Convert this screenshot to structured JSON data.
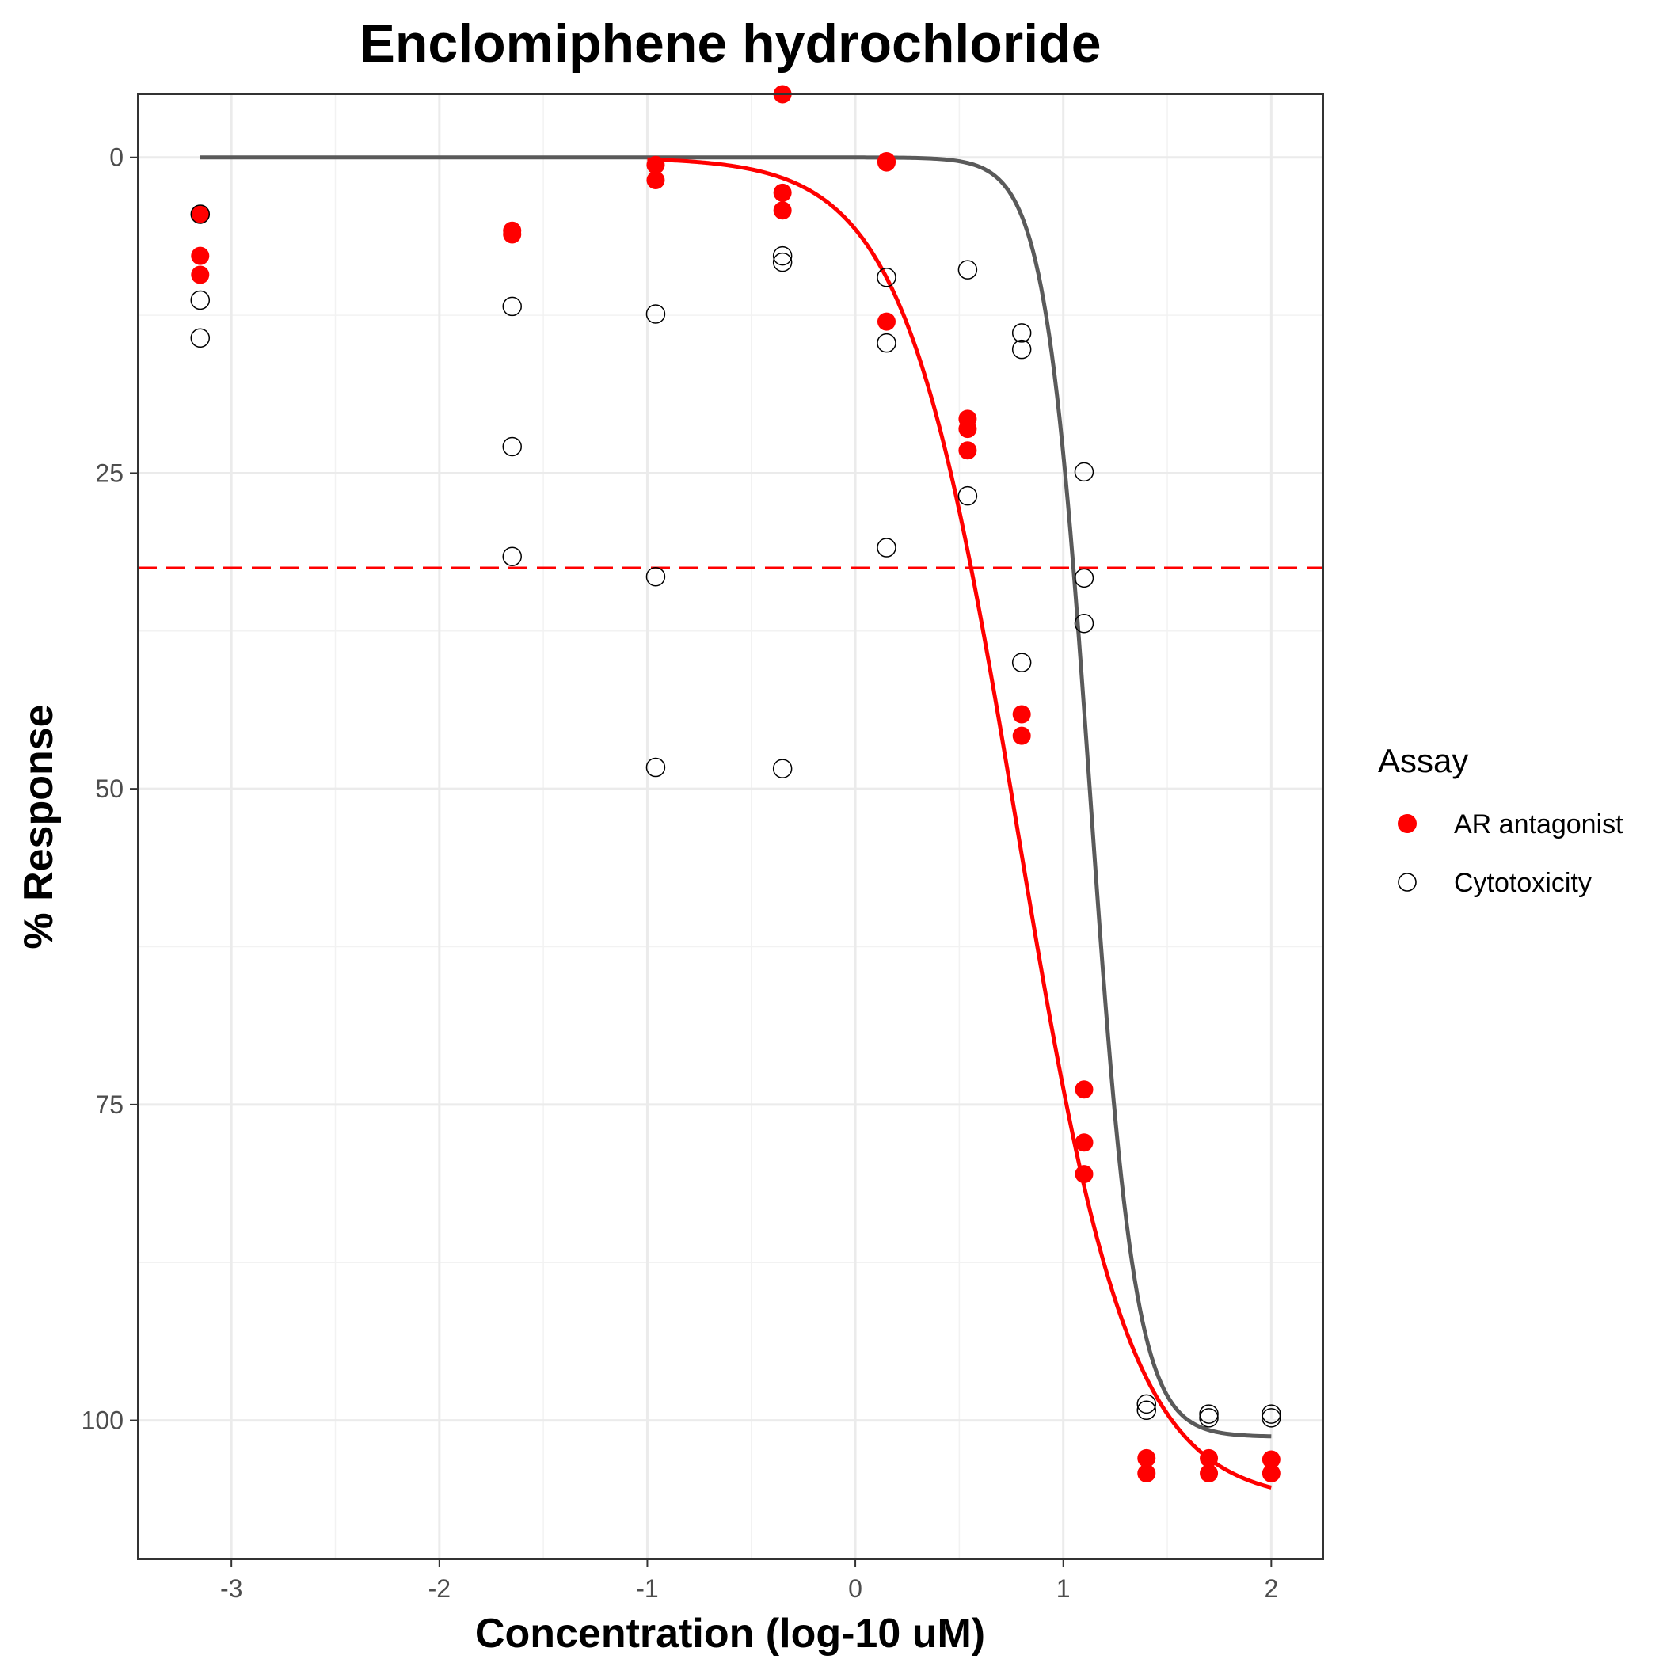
{
  "chart_data": {
    "type": "scatter",
    "title": "Enclomiphene hydrochloride",
    "xlabel": "Concentration (log-10 uM)",
    "ylabel": "% Response",
    "xlim": [
      -3.45,
      2.25
    ],
    "ylim": [
      111,
      -5
    ],
    "y_reversed": true,
    "x_ticks": [
      "-3",
      "-2",
      "-1",
      "0",
      "1",
      "2"
    ],
    "x_tick_values": [
      -3,
      -2,
      -1,
      0,
      1,
      2
    ],
    "y_ticks": [
      "0",
      "25",
      "50",
      "75",
      "100"
    ],
    "y_tick_values": [
      0,
      25,
      50,
      75,
      100
    ],
    "grid": true,
    "threshold_line": {
      "y": 32.5,
      "color": "#ff0000",
      "style": "dashed"
    },
    "legend": {
      "title": "Assay",
      "position": "right",
      "entries": [
        {
          "label": "AR antagonist",
          "marker": "filled-circle",
          "color": "#ff0000"
        },
        {
          "label": "Cytotoxicity",
          "marker": "open-circle",
          "color": "#000000"
        }
      ]
    },
    "series": [
      {
        "name": "AR antagonist",
        "color": "#ff0000",
        "marker": "filled",
        "points": [
          [
            -3.15,
            4.5
          ],
          [
            -3.15,
            7.8
          ],
          [
            -3.15,
            9.3
          ],
          [
            -1.65,
            5.8
          ],
          [
            -1.65,
            6.1
          ],
          [
            -0.96,
            0.6
          ],
          [
            -0.96,
            1.8
          ],
          [
            -0.35,
            -5.0
          ],
          [
            -0.35,
            2.8
          ],
          [
            -0.35,
            4.2
          ],
          [
            0.15,
            0.3
          ],
          [
            0.15,
            0.4
          ],
          [
            0.15,
            13.0
          ],
          [
            0.54,
            20.7
          ],
          [
            0.54,
            21.5
          ],
          [
            0.54,
            23.2
          ],
          [
            0.8,
            44.1
          ],
          [
            0.8,
            45.8
          ],
          [
            1.1,
            73.8
          ],
          [
            1.1,
            78.0
          ],
          [
            1.1,
            80.5
          ],
          [
            1.4,
            103.0
          ],
          [
            1.4,
            104.2
          ],
          [
            1.7,
            103.0
          ],
          [
            1.7,
            104.2
          ],
          [
            2.0,
            103.1
          ],
          [
            2.0,
            104.2
          ]
        ],
        "fit": {
          "top": 0,
          "bottom": 106.5,
          "ec50_log": 0.78,
          "hill": 1.6,
          "x_range": [
            -1.0,
            2.0
          ]
        }
      },
      {
        "name": "Cytotoxicity",
        "color": "#000000",
        "marker": "open",
        "points": [
          [
            -3.15,
            4.5
          ],
          [
            -3.15,
            11.3
          ],
          [
            -3.15,
            14.3
          ],
          [
            -1.65,
            11.8
          ],
          [
            -1.65,
            22.9
          ],
          [
            -1.65,
            31.6
          ],
          [
            -0.96,
            12.4
          ],
          [
            -0.96,
            33.2
          ],
          [
            -0.96,
            48.3
          ],
          [
            -0.35,
            7.8
          ],
          [
            -0.35,
            8.3
          ],
          [
            -0.35,
            48.4
          ],
          [
            0.15,
            9.5
          ],
          [
            0.15,
            14.7
          ],
          [
            0.15,
            30.9
          ],
          [
            0.54,
            8.9
          ],
          [
            0.54,
            26.8
          ],
          [
            0.8,
            13.9
          ],
          [
            0.8,
            15.2
          ],
          [
            0.8,
            40.0
          ],
          [
            1.1,
            24.9
          ],
          [
            1.1,
            33.3
          ],
          [
            1.1,
            36.9
          ],
          [
            1.4,
            98.7
          ],
          [
            1.4,
            99.2
          ],
          [
            1.7,
            99.5
          ],
          [
            1.7,
            99.8
          ],
          [
            2.0,
            99.5
          ],
          [
            2.0,
            99.8
          ]
        ],
        "fit": {
          "top": 0,
          "bottom": 101.3,
          "ec50_log": 1.13,
          "hill": 4.0,
          "x_range": [
            -3.15,
            2.0
          ],
          "color": "#5a5a5a"
        }
      }
    ]
  }
}
